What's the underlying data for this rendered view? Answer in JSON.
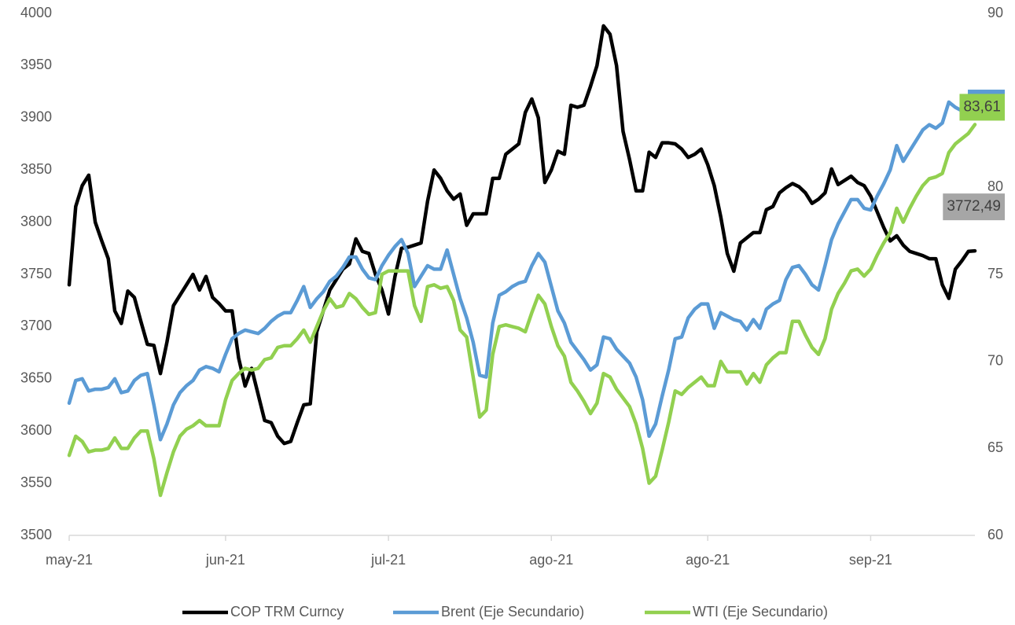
{
  "chart_data": {
    "type": "line",
    "categories": [
      "may-21",
      null,
      null,
      null,
      null,
      null,
      null,
      null,
      null,
      null,
      null,
      null,
      null,
      null,
      null,
      null,
      null,
      null,
      null,
      null,
      null,
      null,
      null,
      null,
      "jun-21",
      null,
      null,
      null,
      null,
      null,
      null,
      null,
      null,
      null,
      null,
      null,
      null,
      null,
      null,
      null,
      null,
      null,
      null,
      null,
      null,
      null,
      null,
      null,
      null,
      "jul-21",
      null,
      null,
      null,
      null,
      null,
      null,
      null,
      null,
      null,
      null,
      null,
      null,
      null,
      null,
      null,
      null,
      null,
      null,
      null,
      null,
      null,
      null,
      null,
      null,
      "ago-21",
      null,
      null,
      null,
      null,
      null,
      null,
      null,
      null,
      null,
      null,
      null,
      null,
      null,
      null,
      null,
      null,
      null,
      null,
      null,
      null,
      null,
      null,
      null,
      "ago-21",
      null,
      null,
      null,
      null,
      null,
      null,
      null,
      null,
      null,
      null,
      null,
      null,
      null,
      null,
      null,
      null,
      null,
      null,
      null,
      null,
      null,
      null,
      null,
      null,
      "sep-21",
      null,
      null,
      null,
      null,
      null,
      null,
      null,
      null,
      null,
      null,
      null,
      null,
      null,
      null,
      null,
      null
    ],
    "series": [
      {
        "name": "COP TRM Curncy",
        "color": "#000000",
        "label_color": "#a6a6a6",
        "axis": "y",
        "values": [
          3740,
          3815,
          3835,
          3845,
          3800,
          3782,
          3765,
          3715,
          3703,
          3734,
          3728,
          3705,
          3683,
          3682,
          3655,
          3685,
          3720,
          3730,
          3740,
          3750,
          3735,
          3748,
          3728,
          3722,
          3715,
          3715,
          3670,
          3643,
          3660,
          3635,
          3610,
          3608,
          3595,
          3588,
          3590,
          3608,
          3625,
          3626,
          3695,
          3715,
          3735,
          3745,
          3755,
          3760,
          3784,
          3772,
          3770,
          3750,
          3735,
          3712,
          3748,
          3775,
          3776,
          3778,
          3780,
          3820,
          3850,
          3842,
          3830,
          3822,
          3827,
          3797,
          3808,
          3808,
          3808,
          3842,
          3842,
          3865,
          3870,
          3875,
          3905,
          3918,
          3900,
          3838,
          3850,
          3868,
          3865,
          3912,
          3910,
          3912,
          3930,
          3950,
          3988,
          3980,
          3950,
          3887,
          3860,
          3830,
          3830,
          3867,
          3862,
          3876,
          3876,
          3875,
          3870,
          3862,
          3865,
          3870,
          3855,
          3835,
          3805,
          3770,
          3753,
          3780,
          3785,
          3790,
          3790,
          3812,
          3815,
          3828,
          3833,
          3837,
          3834,
          3828,
          3818,
          3822,
          3828,
          3851,
          3836,
          3840,
          3844,
          3838,
          3835,
          3825,
          3810,
          3795,
          3782,
          3787,
          3778,
          3772,
          3770,
          3768,
          3765,
          3765,
          3740,
          3727,
          3755,
          3763,
          3772,
          3772.49
        ],
        "value_labels": {
          "139": "3772,49"
        }
      },
      {
        "name": "Brent (Eje Secundario)",
        "color": "#5b9bd5",
        "label_color": "#5b9bd5",
        "axis": "y2",
        "values": [
          67.6,
          68.9,
          69.0,
          68.3,
          68.4,
          68.4,
          68.5,
          69.0,
          68.2,
          68.3,
          68.9,
          69.2,
          69.3,
          67.5,
          65.5,
          66.4,
          67.5,
          68.2,
          68.6,
          68.9,
          69.5,
          69.7,
          69.6,
          69.4,
          70.4,
          71.3,
          71.6,
          71.8,
          71.7,
          71.6,
          71.9,
          72.3,
          72.6,
          72.8,
          72.8,
          73.5,
          74.3,
          73.1,
          73.6,
          74.0,
          74.6,
          74.9,
          75.4,
          76.0,
          76.0,
          75.3,
          74.8,
          74.7,
          75.5,
          76.1,
          76.6,
          77.0,
          76.2,
          74.3,
          74.9,
          75.5,
          75.3,
          75.3,
          76.4,
          75.0,
          73.6,
          72.5,
          71.1,
          69.2,
          69.1,
          72.2,
          73.8,
          74.0,
          74.3,
          74.5,
          74.6,
          75.5,
          76.2,
          75.7,
          74.3,
          72.9,
          72.2,
          71.1,
          70.6,
          70.1,
          69.5,
          69.8,
          71.4,
          71.3,
          70.7,
          70.3,
          69.9,
          69.1,
          67.8,
          65.7,
          66.4,
          68.0,
          69.5,
          71.3,
          71.4,
          72.5,
          73.0,
          73.3,
          73.3,
          71.9,
          72.8,
          72.6,
          72.4,
          72.3,
          71.8,
          72.4,
          71.9,
          73.0,
          73.3,
          73.5,
          74.7,
          75.4,
          75.5,
          75.0,
          74.4,
          74.1,
          75.5,
          77.0,
          77.9,
          78.6,
          79.3,
          79.3,
          78.8,
          78.7,
          79.5,
          80.2,
          81.0,
          82.4,
          81.5,
          82.1,
          82.7,
          83.3,
          83.6,
          83.4,
          83.7,
          84.9,
          84.6,
          84.4,
          84.6,
          85.3
        ],
        "value_labels": {
          "139": "85,3"
        }
      },
      {
        "name": "WTI (Eje Secundario)",
        "color": "#92d050",
        "label_color": "#92d050",
        "axis": "y2",
        "values": [
          64.6,
          65.7,
          65.4,
          64.8,
          64.9,
          64.9,
          65.0,
          65.6,
          65.0,
          65.0,
          65.6,
          66.0,
          66.0,
          64.4,
          62.3,
          63.6,
          64.8,
          65.7,
          66.1,
          66.3,
          66.6,
          66.3,
          66.3,
          66.3,
          67.8,
          68.9,
          69.3,
          69.6,
          69.5,
          69.6,
          70.1,
          70.2,
          70.8,
          70.9,
          70.9,
          71.3,
          71.8,
          71.1,
          72.0,
          72.9,
          73.6,
          73.1,
          73.2,
          73.9,
          73.6,
          73.1,
          72.7,
          72.8,
          75.0,
          75.2,
          75.2,
          75.2,
          75.2,
          73.2,
          72.3,
          74.3,
          74.4,
          74.2,
          74.3,
          73.5,
          71.8,
          71.4,
          69.1,
          66.8,
          67.2,
          70.4,
          72.0,
          72.1,
          72.0,
          71.9,
          71.7,
          72.8,
          73.8,
          73.3,
          72.0,
          70.9,
          70.3,
          68.8,
          68.3,
          67.7,
          67.0,
          67.6,
          69.3,
          69.1,
          68.4,
          67.9,
          67.4,
          66.4,
          65.0,
          63.0,
          63.4,
          64.9,
          66.5,
          68.3,
          68.1,
          68.5,
          68.8,
          69.1,
          68.6,
          68.6,
          70.0,
          69.4,
          69.4,
          69.4,
          68.7,
          69.3,
          68.8,
          69.8,
          70.2,
          70.5,
          70.5,
          72.3,
          72.3,
          71.5,
          70.8,
          70.4,
          71.3,
          73.0,
          73.9,
          74.5,
          75.2,
          75.3,
          74.9,
          75.3,
          76.1,
          76.8,
          77.4,
          78.8,
          78.0,
          78.8,
          79.5,
          80.1,
          80.5,
          80.6,
          80.8,
          82.0,
          82.5,
          82.8,
          83.1,
          83.61
        ],
        "value_labels": {
          "139": "83,61"
        }
      }
    ],
    "ylim": [
      3500,
      4000
    ],
    "yticks": [
      3500,
      3550,
      3600,
      3650,
      3700,
      3750,
      3800,
      3850,
      3900,
      3950,
      4000
    ],
    "y2lim": [
      60,
      90
    ],
    "y2ticks": [
      60,
      65,
      70,
      75,
      80,
      85,
      90
    ],
    "grid": false,
    "legend": "bottom"
  }
}
